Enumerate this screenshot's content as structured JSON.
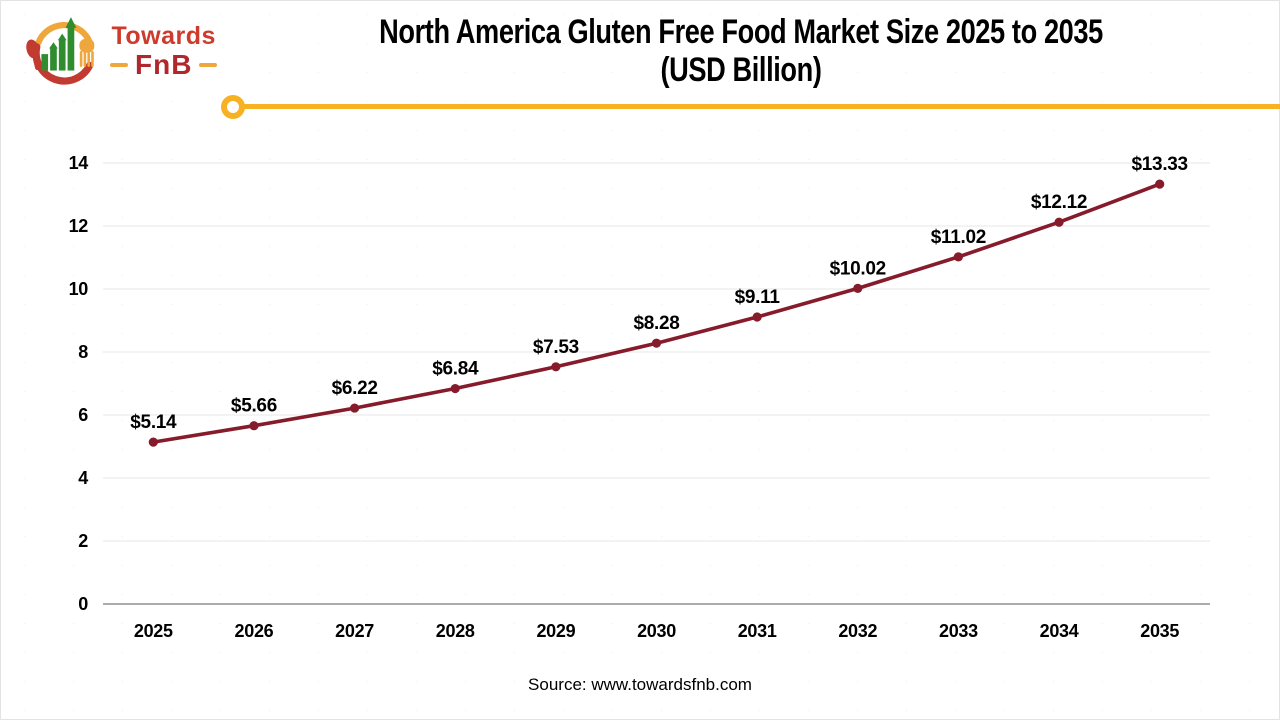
{
  "logo": {
    "icon": "spoon-fork-growth-bars-icon",
    "brand_line1": "Towards",
    "brand_line2": "FnB",
    "colors": {
      "red": "#ce3a2b",
      "dark_red": "#b1272b",
      "yellow": "#efa63b",
      "green": "#2f8c2f"
    }
  },
  "header": {
    "title_line1": "North America Gluten Free Food Market Size 2025 to 2035",
    "title_line2": "(USD Billion)",
    "divider_color": "#f7b223"
  },
  "chart_data": {
    "type": "line",
    "title": "North America Gluten Free Food Market Size 2025 to 2035 (USD Billion)",
    "categories": [
      "2025",
      "2026",
      "2027",
      "2028",
      "2029",
      "2030",
      "2031",
      "2032",
      "2033",
      "2034",
      "2035"
    ],
    "series": [
      {
        "name": "Market Size (USD Billion)",
        "values": [
          5.14,
          5.66,
          6.22,
          6.84,
          7.53,
          8.28,
          9.11,
          10.02,
          11.02,
          12.12,
          13.33
        ],
        "labels": [
          "$5.14",
          "$5.66",
          "$6.22",
          "$6.84",
          "$7.53",
          "$8.28",
          "$9.11",
          "$10.02",
          "$11.02",
          "$12.12",
          "$13.33"
        ],
        "color": "#861b2c"
      }
    ],
    "xlabel": "",
    "ylabel": "",
    "ylim": [
      0,
      14
    ],
    "ytick_step": 2,
    "grid": true,
    "legend": false,
    "marker": "circle",
    "grid_color": "#ececec",
    "axis_color": "#acacac",
    "text_color": "#000000"
  },
  "footer": {
    "source": "Source: www.towardsfnb.com"
  }
}
